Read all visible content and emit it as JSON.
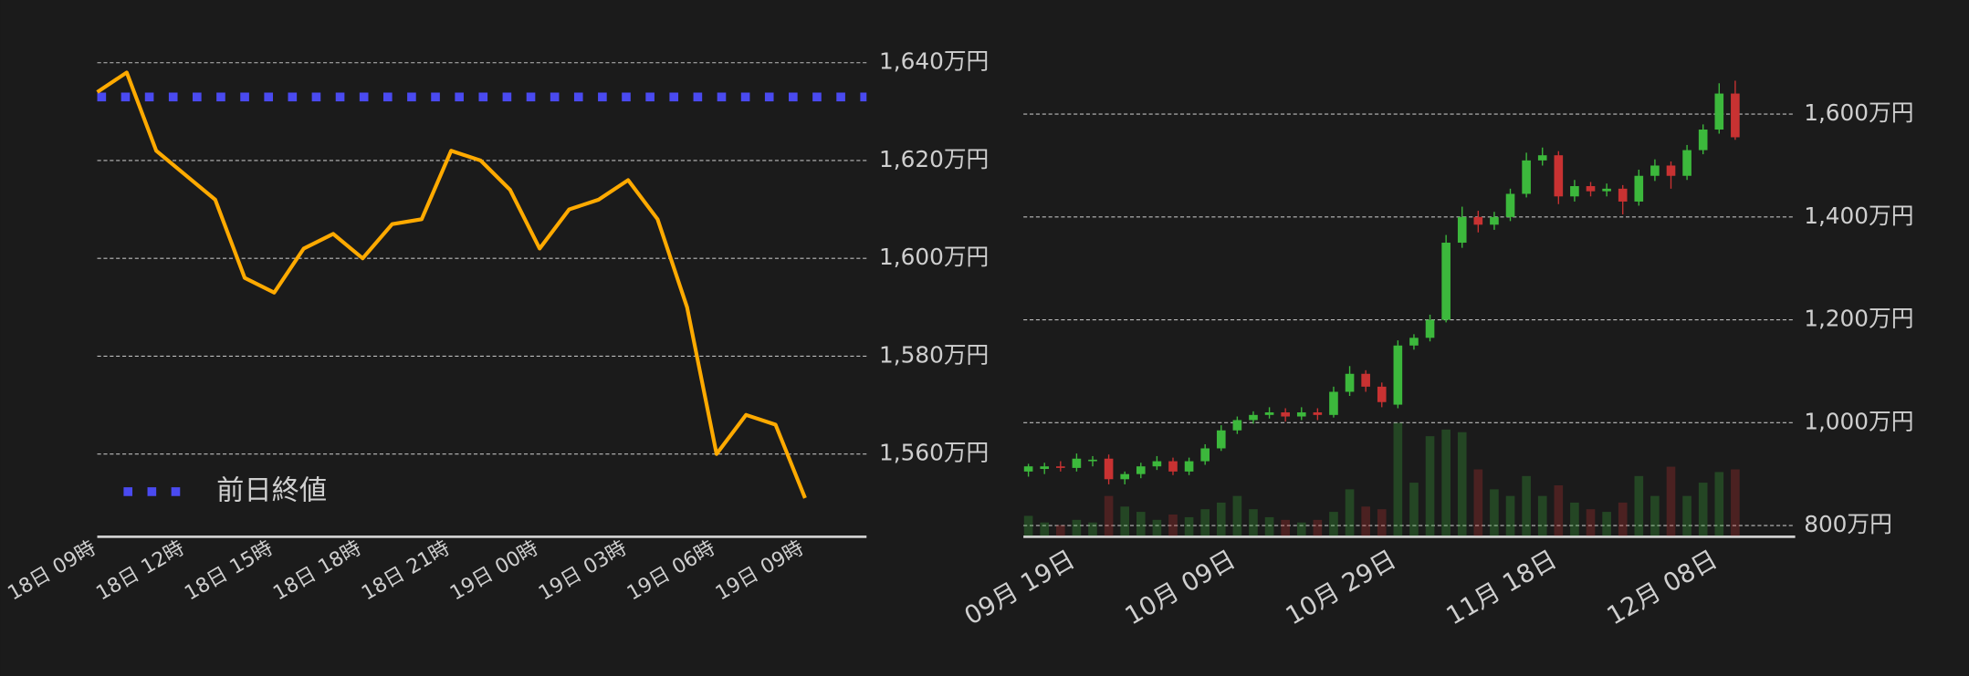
{
  "chart_data": [
    {
      "type": "line",
      "categories": [
        "18日 09時",
        null,
        null,
        "18日 12時",
        null,
        null,
        "18日 15時",
        null,
        null,
        "18日 18時",
        null,
        null,
        "18日 21時",
        null,
        null,
        "19日 00時",
        null,
        null,
        "19日 03時",
        null,
        null,
        "19日 06時",
        null,
        null,
        "19日 09時"
      ],
      "values": [
        1634,
        1638,
        1622,
        1617,
        1612,
        1596,
        1593,
        1602,
        1605,
        1600,
        1607,
        1608,
        1622,
        1620,
        1614,
        1602,
        1610,
        1612,
        1616,
        1608,
        1590,
        1560,
        1568,
        1566,
        1551
      ],
      "color": "#ffaa00",
      "reference_line": {
        "name": "前日終値",
        "value": 1633,
        "color": "#4a4af0"
      },
      "ylim": [
        1543,
        1641
      ],
      "yticks": [
        {
          "value": 1560,
          "label": "1,560万円"
        },
        {
          "value": 1580,
          "label": "1,580万円"
        },
        {
          "value": 1600,
          "label": "1,600万円"
        },
        {
          "value": 1620,
          "label": "1,620万円"
        },
        {
          "value": 1640,
          "label": "1,640万円"
        }
      ],
      "grid": true
    },
    {
      "type": "candlestick",
      "categories": [
        null,
        null,
        null,
        "09月 19日",
        null,
        null,
        null,
        null,
        null,
        null,
        null,
        null,
        null,
        "10月 09日",
        null,
        null,
        null,
        null,
        null,
        null,
        null,
        null,
        null,
        "10月 29日",
        null,
        null,
        null,
        null,
        null,
        null,
        null,
        null,
        null,
        "11月 18日",
        null,
        null,
        null,
        null,
        null,
        null,
        null,
        null,
        null,
        "12月 08日",
        null
      ],
      "open": [
        905,
        910,
        915,
        912,
        925,
        930,
        890,
        900,
        915,
        925,
        905,
        925,
        950,
        985,
        1005,
        1015,
        1020,
        1012,
        1020,
        1015,
        1060,
        1095,
        1070,
        1035,
        1150,
        1165,
        1200,
        1350,
        1400,
        1385,
        1400,
        1445,
        1510,
        1520,
        1440,
        1460,
        1450,
        1455,
        1430,
        1480,
        1500,
        1480,
        1530,
        1570,
        1640
      ],
      "high": [
        920,
        922,
        925,
        940,
        935,
        938,
        905,
        922,
        935,
        932,
        932,
        958,
        995,
        1012,
        1022,
        1030,
        1028,
        1030,
        1028,
        1070,
        1110,
        1102,
        1078,
        1160,
        1172,
        1210,
        1365,
        1420,
        1412,
        1410,
        1455,
        1525,
        1535,
        1528,
        1472,
        1468,
        1465,
        1462,
        1492,
        1512,
        1508,
        1540,
        1580,
        1660,
        1665
      ],
      "low": [
        895,
        900,
        905,
        905,
        915,
        880,
        880,
        892,
        908,
        898,
        898,
        918,
        945,
        978,
        998,
        1008,
        1002,
        1005,
        1005,
        1010,
        1052,
        1060,
        1030,
        1028,
        1142,
        1158,
        1195,
        1340,
        1370,
        1375,
        1392,
        1438,
        1500,
        1425,
        1430,
        1440,
        1440,
        1405,
        1422,
        1470,
        1455,
        1472,
        1522,
        1562,
        1550
      ],
      "close": [
        915,
        915,
        912,
        930,
        928,
        890,
        900,
        915,
        925,
        905,
        925,
        950,
        985,
        1005,
        1015,
        1020,
        1012,
        1020,
        1015,
        1060,
        1095,
        1070,
        1040,
        1150,
        1165,
        1200,
        1350,
        1400,
        1385,
        1400,
        1445,
        1510,
        1520,
        1440,
        1460,
        1450,
        1455,
        1430,
        1480,
        1500,
        1480,
        1530,
        1570,
        1640,
        1555
      ],
      "volume": [
        15,
        10,
        8,
        12,
        10,
        30,
        22,
        18,
        12,
        16,
        14,
        20,
        25,
        30,
        20,
        14,
        12,
        10,
        12,
        18,
        35,
        22,
        20,
        85,
        40,
        75,
        80,
        78,
        50,
        35,
        30,
        45,
        30,
        38,
        25,
        20,
        18,
        25,
        45,
        30,
        52,
        30,
        40,
        48,
        50
      ],
      "up_color": "#3cb83c",
      "down_color": "#c83232",
      "ylim": [
        780,
        1670
      ],
      "yticks": [
        {
          "value": 800,
          "label": "800万円"
        },
        {
          "value": 1000,
          "label": "1,000万円"
        },
        {
          "value": 1200,
          "label": "1,200万円"
        },
        {
          "value": 1400,
          "label": "1,400万円"
        },
        {
          "value": 1600,
          "label": "1,600万円"
        }
      ],
      "grid": true
    }
  ]
}
